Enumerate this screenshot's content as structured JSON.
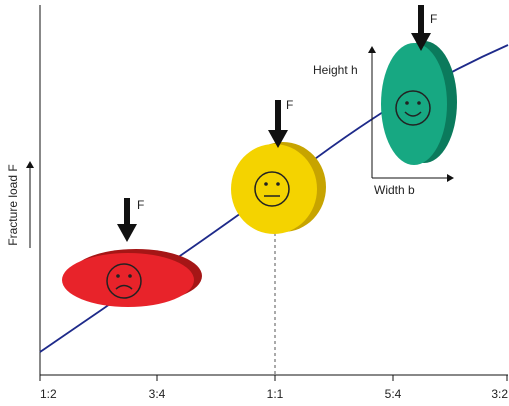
{
  "x_axis": {
    "tick_labels": [
      "1:2",
      "3:4",
      "1:1",
      "5:4",
      "3:2"
    ]
  },
  "y_axis": {
    "label": "Fracture load  F"
  },
  "annotations": {
    "force_labels": [
      "F",
      "F",
      "F"
    ],
    "height_label": "Height h",
    "width_label": "Width b"
  }
}
